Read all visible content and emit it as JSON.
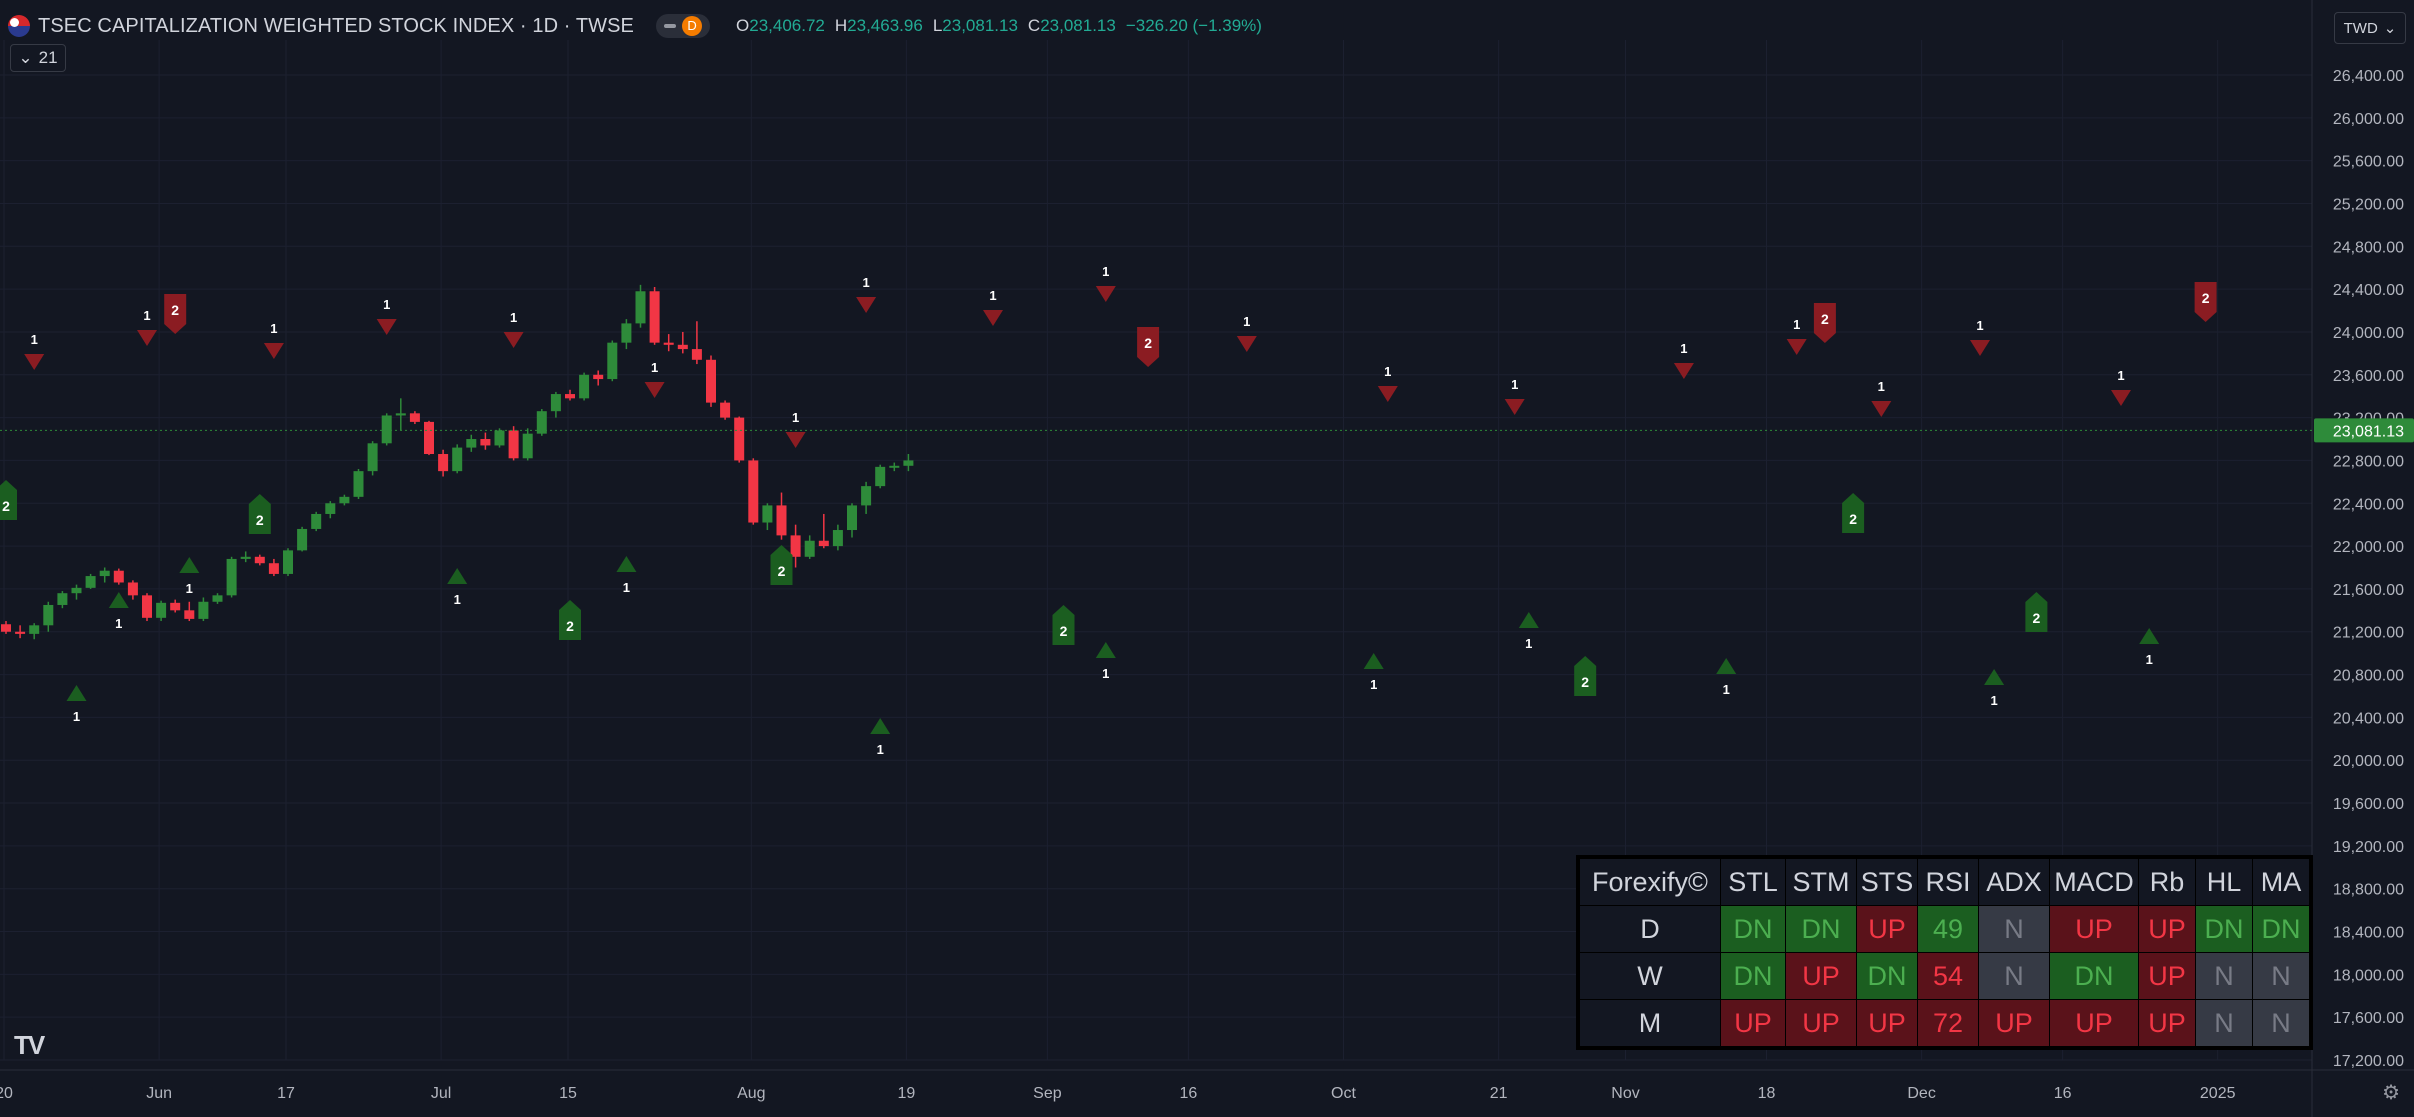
{
  "header": {
    "title": "TSEC CAPITALIZATION WEIGHTED STOCK INDEX · 1D · TWSE",
    "interval_badge": "D",
    "ohlc": {
      "o_label": "O",
      "o": "23,406.72",
      "h_label": "H",
      "h": "23,463.96",
      "l_label": "L",
      "l": "23,081.13",
      "c_label": "C",
      "c": "23,081.13",
      "change": "−326.20 (−1.39%)"
    },
    "indicator_count": "21",
    "currency": "TWD"
  },
  "colors": {
    "up": "#26a69a",
    "green": "#2e7d32",
    "red": "#f23645",
    "bg": "#131722",
    "grid": "#1e222d",
    "text": "#b2b5be"
  },
  "chart_data": {
    "type": "candlestick",
    "ylim": [
      17200,
      26400
    ],
    "y_ticks": [
      "26,400.00",
      "26,000.00",
      "25,600.00",
      "25,200.00",
      "24,800.00",
      "24,400.00",
      "24,000.00",
      "23,600.00",
      "23,200.00",
      "22,800.00",
      "22,400.00",
      "22,000.00",
      "21,600.00",
      "21,200.00",
      "20,800.00",
      "20,400.00",
      "20,000.00",
      "19,600.00",
      "19,200.00",
      "18,800.00",
      "18,400.00",
      "18,000.00",
      "17,600.00",
      "17,200.00"
    ],
    "x_labels": [
      "20",
      "Jun",
      "17",
      "Jul",
      "15",
      "Aug",
      "19",
      "Sep",
      "16",
      "Oct",
      "21",
      "Nov",
      "18",
      "Dec",
      "16",
      "2025"
    ],
    "x_label_index": [
      0,
      11,
      20,
      31,
      40,
      53,
      64,
      74,
      84,
      95,
      106,
      115,
      125,
      136,
      146,
      157
    ],
    "last_price": "23,081.13",
    "last_value": 23081.13,
    "candles": [
      [
        21270,
        21300,
        21180,
        21200
      ],
      [
        21200,
        21260,
        21140,
        21180
      ],
      [
        21180,
        21280,
        21130,
        21260
      ],
      [
        21260,
        21480,
        21200,
        21450
      ],
      [
        21450,
        21580,
        21420,
        21560
      ],
      [
        21560,
        21640,
        21500,
        21610
      ],
      [
        21610,
        21740,
        21600,
        21720
      ],
      [
        21720,
        21800,
        21660,
        21770
      ],
      [
        21770,
        21790,
        21640,
        21660
      ],
      [
        21660,
        21680,
        21500,
        21540
      ],
      [
        21540,
        21560,
        21300,
        21330
      ],
      [
        21330,
        21490,
        21300,
        21470
      ],
      [
        21470,
        21500,
        21380,
        21400
      ],
      [
        21400,
        21480,
        21300,
        21320
      ],
      [
        21320,
        21520,
        21300,
        21480
      ],
      [
        21480,
        21560,
        21460,
        21540
      ],
      [
        21540,
        21900,
        21520,
        21880
      ],
      [
        21880,
        21950,
        21850,
        21900
      ],
      [
        21900,
        21920,
        21820,
        21840
      ],
      [
        21840,
        21880,
        21720,
        21740
      ],
      [
        21740,
        21980,
        21720,
        21960
      ],
      [
        21960,
        22180,
        21950,
        22160
      ],
      [
        22160,
        22320,
        22140,
        22300
      ],
      [
        22300,
        22420,
        22260,
        22400
      ],
      [
        22400,
        22480,
        22380,
        22460
      ],
      [
        22460,
        22720,
        22440,
        22700
      ],
      [
        22700,
        22980,
        22660,
        22960
      ],
      [
        22960,
        23240,
        22940,
        23220
      ],
      [
        23220,
        23380,
        23080,
        23240
      ],
      [
        23240,
        23260,
        23140,
        23160
      ],
      [
        23160,
        23170,
        22850,
        22860
      ],
      [
        22860,
        22900,
        22650,
        22700
      ],
      [
        22700,
        22950,
        22680,
        22920
      ],
      [
        22920,
        23040,
        22880,
        23000
      ],
      [
        23000,
        23060,
        22900,
        22940
      ],
      [
        22940,
        23100,
        22920,
        23080
      ],
      [
        23080,
        23120,
        22800,
        22820
      ],
      [
        22820,
        23100,
        22800,
        23050
      ],
      [
        23050,
        23280,
        23030,
        23260
      ],
      [
        23260,
        23440,
        23200,
        23420
      ],
      [
        23420,
        23460,
        23360,
        23380
      ],
      [
        23380,
        23620,
        23360,
        23600
      ],
      [
        23600,
        23640,
        23500,
        23560
      ],
      [
        23560,
        23920,
        23540,
        23900
      ],
      [
        23900,
        24120,
        23840,
        24080
      ],
      [
        24080,
        24440,
        24040,
        24380
      ],
      [
        24380,
        24420,
        23880,
        23900
      ],
      [
        23900,
        23980,
        23820,
        23880
      ],
      [
        23880,
        24000,
        23800,
        23840
      ],
      [
        23840,
        24100,
        23700,
        23740
      ],
      [
        23740,
        23780,
        23300,
        23340
      ],
      [
        23340,
        23360,
        23180,
        23200
      ],
      [
        23200,
        23210,
        22780,
        22800
      ],
      [
        22800,
        22820,
        22200,
        22220
      ],
      [
        22220,
        22400,
        22150,
        22380
      ],
      [
        22380,
        22500,
        22060,
        22100
      ],
      [
        22100,
        22200,
        21800,
        21900
      ],
      [
        21900,
        22100,
        21880,
        22050
      ],
      [
        22050,
        22300,
        21980,
        22000
      ],
      [
        22000,
        22200,
        21960,
        22150
      ],
      [
        22150,
        22400,
        22080,
        22380
      ],
      [
        22380,
        22600,
        22300,
        22560
      ],
      [
        22560,
        22760,
        22540,
        22740
      ],
      [
        22740,
        22780,
        22700,
        22750
      ],
      [
        22750,
        22860,
        22700,
        22800
      ]
    ],
    "markers": {
      "sell_arrows": [
        [
          2,
          "1"
        ],
        [
          10,
          "1"
        ],
        [
          19,
          "1"
        ],
        [
          27,
          "1"
        ],
        [
          36,
          "1"
        ],
        [
          46,
          "1"
        ],
        [
          56,
          "1"
        ],
        [
          61,
          "1"
        ],
        [
          70,
          "1"
        ],
        [
          78,
          "1"
        ],
        [
          88,
          "1"
        ],
        [
          98,
          "1"
        ],
        [
          107,
          "1"
        ],
        [
          119,
          "1"
        ],
        [
          127,
          "1"
        ],
        [
          133,
          "1"
        ],
        [
          140,
          "1"
        ],
        [
          150,
          "1"
        ]
      ],
      "sell_flags": [
        [
          12,
          "2"
        ],
        [
          81,
          "2"
        ],
        [
          129,
          "2"
        ],
        [
          156,
          "2"
        ]
      ],
      "buy_arrows": [
        [
          5,
          "1"
        ],
        [
          8,
          "1"
        ],
        [
          13,
          "1"
        ],
        [
          32,
          "1"
        ],
        [
          44,
          "1"
        ],
        [
          62,
          "1"
        ],
        [
          78,
          "1"
        ],
        [
          97,
          "1"
        ],
        [
          108,
          "1"
        ],
        [
          122,
          "1"
        ],
        [
          141,
          "1"
        ],
        [
          152,
          "1"
        ]
      ],
      "buy_flags": [
        [
          0,
          "2"
        ],
        [
          18,
          "2"
        ],
        [
          40,
          "2"
        ],
        [
          55,
          "2"
        ],
        [
          75,
          "2"
        ],
        [
          112,
          "2"
        ],
        [
          131,
          "2"
        ],
        [
          144,
          "2"
        ]
      ]
    }
  },
  "forexify": {
    "brand": "Forexify©",
    "columns": [
      "STL",
      "STM",
      "STS",
      "RSI",
      "ADX",
      "MACD",
      "Rb",
      "HL",
      "MA"
    ],
    "rows": [
      {
        "label": "D",
        "cells": [
          "DN",
          "DN",
          "UP",
          "49",
          "N",
          "UP",
          "UP",
          "DN",
          "DN"
        ]
      },
      {
        "label": "W",
        "cells": [
          "DN",
          "UP",
          "DN",
          "54",
          "N",
          "DN",
          "UP",
          "N",
          "N"
        ]
      },
      {
        "label": "M",
        "cells": [
          "UP",
          "UP",
          "UP",
          "72",
          "UP",
          "UP",
          "UP",
          "N",
          "N"
        ]
      }
    ]
  }
}
